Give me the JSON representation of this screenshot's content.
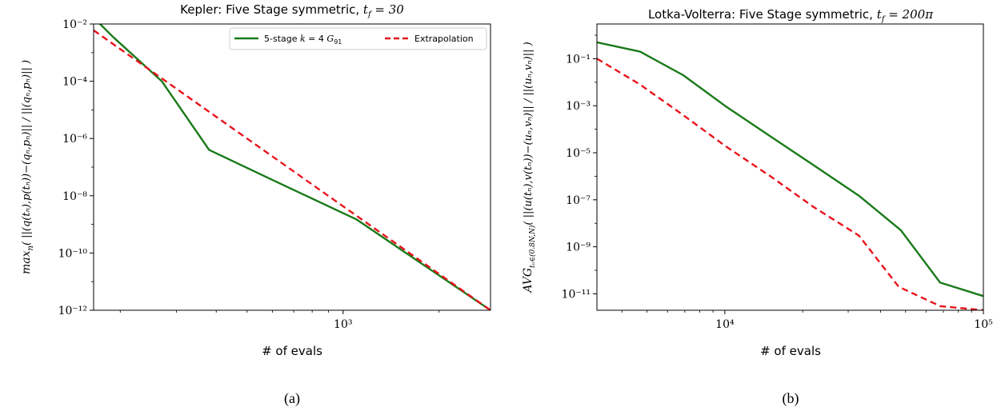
{
  "chart_data": [
    {
      "type": "line",
      "title": "Kepler: Five Stage symmetric, t_f = 30",
      "xlabel": "# of evals",
      "ylabel": "max_n( ||(q(t_n),p(t_n))−(q_n,p_n)|| / ||(q_n,p_n)|| )",
      "x_scale": "log",
      "y_scale": "log",
      "xlim": [
        165,
        2900
      ],
      "ylim": [
        1e-12,
        0.01
      ],
      "x_ticks": [
        {
          "value": 1000,
          "label": "10³"
        }
      ],
      "y_ticks": [
        {
          "value": 0.01,
          "label": "10⁻²"
        },
        {
          "value": 0.0001,
          "label": "10⁻⁴"
        },
        {
          "value": 1e-06,
          "label": "10⁻⁶"
        },
        {
          "value": 1e-08,
          "label": "10⁻⁸"
        },
        {
          "value": 1e-10,
          "label": "10⁻¹⁰"
        },
        {
          "value": 1e-12,
          "label": "10⁻¹²"
        }
      ],
      "grid": false,
      "legend": "top-right",
      "series": [
        {
          "name": "5-stage k = 4 G₉₁",
          "color": "#1a7a1a",
          "style": "solid",
          "points": [
            [
              170,
              0.012
            ],
            [
              190,
              0.0035
            ],
            [
              270,
              0.0001
            ],
            [
              380,
              4e-07
            ],
            [
              620,
              3e-08
            ],
            [
              1100,
              1.5e-09
            ],
            [
              2900,
              1e-12
            ]
          ]
        },
        {
          "name": "Extrapolation",
          "color": "#e8141b",
          "style": "dashed",
          "points": [
            [
              165,
              0.006
            ],
            [
              2900,
              1e-12
            ]
          ]
        }
      ],
      "caption": "(a)"
    },
    {
      "type": "line",
      "title": "Lotka-Volterra: Five Stage symmetric, t_f = 200π",
      "xlabel": "# of evals",
      "ylabel": "AVG_{t_n∈(0.8N,N)}( ||(u(t_n),v(t_n))−(u_n,v_n)|| / ||(u_n,v_n)|| )",
      "x_scale": "log",
      "y_scale": "log",
      "xlim": [
        3200,
        100000
      ],
      "ylim": [
        2e-12,
        3
      ],
      "x_ticks": [
        {
          "value": 10000,
          "label": "10⁴"
        },
        {
          "value": 100000,
          "label": "10⁵"
        }
      ],
      "y_ticks": [
        {
          "value": 0.1,
          "label": "10⁻¹"
        },
        {
          "value": 0.001,
          "label": "10⁻³"
        },
        {
          "value": 1e-05,
          "label": "10⁻⁵"
        },
        {
          "value": 1e-07,
          "label": "10⁻⁷"
        },
        {
          "value": 1e-09,
          "label": "10⁻⁹"
        },
        {
          "value": 1e-11,
          "label": "10⁻¹¹"
        }
      ],
      "grid": false,
      "legend": "none",
      "series": [
        {
          "color": "#1a7a1a",
          "style": "solid",
          "points": [
            [
              3200,
              0.5
            ],
            [
              4700,
              0.2
            ],
            [
              6900,
              0.02
            ],
            [
              10000,
              0.001
            ],
            [
              15000,
              5e-05
            ],
            [
              22000,
              3e-06
            ],
            [
              33000,
              1.5e-07
            ],
            [
              48000,
              5e-09
            ],
            [
              68000,
              3e-11
            ],
            [
              100000,
              8e-12
            ]
          ]
        },
        {
          "color": "#e8141b",
          "style": "dashed",
          "points": [
            [
              3200,
              0.1
            ],
            [
              4700,
              0.008
            ],
            [
              6900,
              0.0004
            ],
            [
              10000,
              2e-05
            ],
            [
              15000,
              1e-06
            ],
            [
              22000,
              5e-08
            ],
            [
              33000,
              3e-09
            ],
            [
              47000,
              2e-11
            ],
            [
              68000,
              3e-12
            ],
            [
              100000,
              2e-12
            ]
          ]
        }
      ],
      "caption": "(b)"
    }
  ]
}
